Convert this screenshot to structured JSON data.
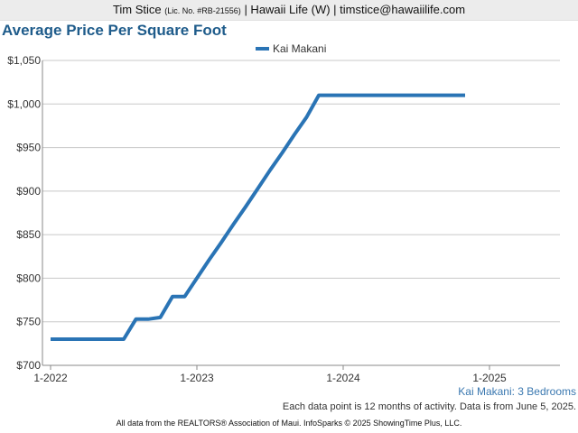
{
  "header": {
    "name": "Tim Stice",
    "license": "(Lic. No. #RB-21556)",
    "rest": "| Hawaii Life (W) | timstice@hawaiilife.com"
  },
  "title": "Average Price Per Square Foot",
  "footer": {
    "series_label": "Kai Makani: 3 Bedrooms",
    "note": "Each data point is 12 months of activity. Data is from June 5, 2025.",
    "copyright": "All data from the REALTORS® Association of Maui. InfoSparks © 2025 ShowingTime Plus, LLC."
  },
  "colors": {
    "series": "#2a74b5",
    "title": "#1f5c8b",
    "grid": "#c8c8c8"
  },
  "chart_data": {
    "type": "line",
    "grid": true,
    "legend": "top-center",
    "ylim": [
      700,
      1050
    ],
    "yticks": [
      700,
      750,
      800,
      850,
      900,
      950,
      1000,
      1050
    ],
    "ytick_labels": [
      "$700",
      "$750",
      "$800",
      "$850",
      "$900",
      "$950",
      "$1,000",
      "$1,050"
    ],
    "xticks": [
      "2022-01",
      "2023-01",
      "2024-01",
      "2025-01"
    ],
    "xtick_labels": [
      "1-2022",
      "1-2023",
      "1-2024",
      "1-2025"
    ],
    "xlim": [
      "2022-01",
      "2025-05"
    ],
    "series": [
      {
        "name": "Kai Makani",
        "x": [
          "2022-01",
          "2022-02",
          "2022-03",
          "2022-04",
          "2022-05",
          "2022-06",
          "2022-07",
          "2022-08",
          "2022-09",
          "2022-10",
          "2022-11",
          "2022-12",
          "2023-01",
          "2023-02",
          "2023-03",
          "2023-04",
          "2023-05",
          "2023-06",
          "2023-07",
          "2023-08",
          "2023-09",
          "2023-10",
          "2023-11",
          "2023-12",
          "2024-01",
          "2024-02",
          "2024-03",
          "2024-04",
          "2024-05",
          "2024-06",
          "2024-07",
          "2024-08",
          "2024-09",
          "2024-10",
          "2024-11"
        ],
        "values": [
          730,
          730,
          730,
          730,
          730,
          730,
          730,
          753,
          753,
          755,
          779,
          779,
          800,
          821,
          841,
          862,
          882,
          903,
          924,
          944,
          965,
          985,
          1010,
          1010,
          1010,
          1010,
          1010,
          1010,
          1010,
          1010,
          1010,
          1010,
          1010,
          1010,
          1010
        ]
      }
    ]
  }
}
